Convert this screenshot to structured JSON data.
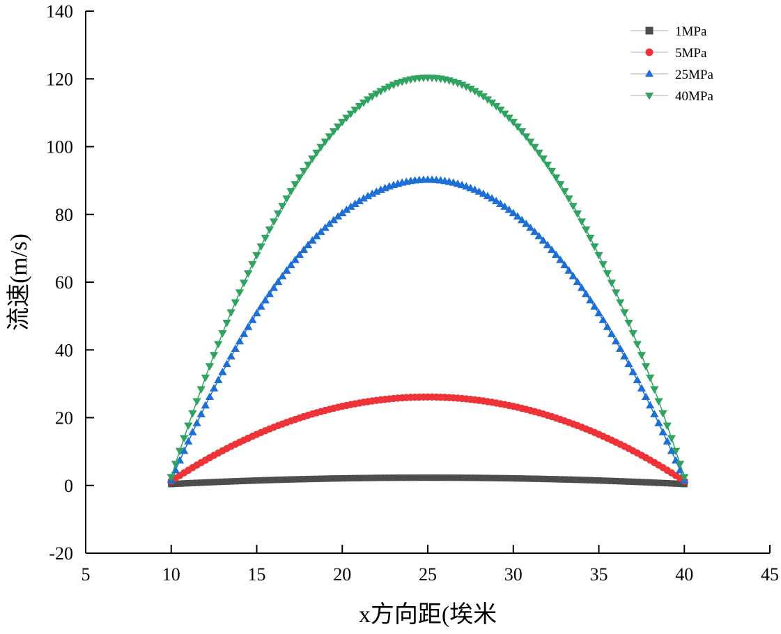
{
  "chart_data": {
    "type": "scatter",
    "title": "",
    "xlabel": "x方向距(埃米",
    "ylabel": "流速(m/s)",
    "xlim": [
      5,
      45
    ],
    "ylim": [
      -20,
      140
    ],
    "xticks": [
      5,
      10,
      15,
      20,
      25,
      30,
      35,
      40,
      45
    ],
    "yticks": [
      -20,
      0,
      20,
      40,
      60,
      80,
      100,
      120,
      140
    ],
    "legend_position": "top-right",
    "profile": "parabolic",
    "x_start": 10,
    "x_end": 40,
    "point_count": 121,
    "series": [
      {
        "name": "1MPa",
        "marker": "square",
        "color": "#4d4d4d",
        "peak": 2.3,
        "peak_x": 25,
        "edge_value": 0.4
      },
      {
        "name": "5MPa",
        "marker": "circle",
        "color": "#ee3338",
        "peak": 26.1,
        "peak_x": 25,
        "edge_value": 1.3
      },
      {
        "name": "25MPa",
        "marker": "triangle-up",
        "color": "#1d6fd6",
        "peak": 90.2,
        "peak_x": 25,
        "edge_value": 1.5
      },
      {
        "name": "40MPa",
        "marker": "triangle-down",
        "color": "#2fa35f",
        "peak": 120.4,
        "peak_x": 25,
        "edge_value": 2.5
      }
    ]
  }
}
